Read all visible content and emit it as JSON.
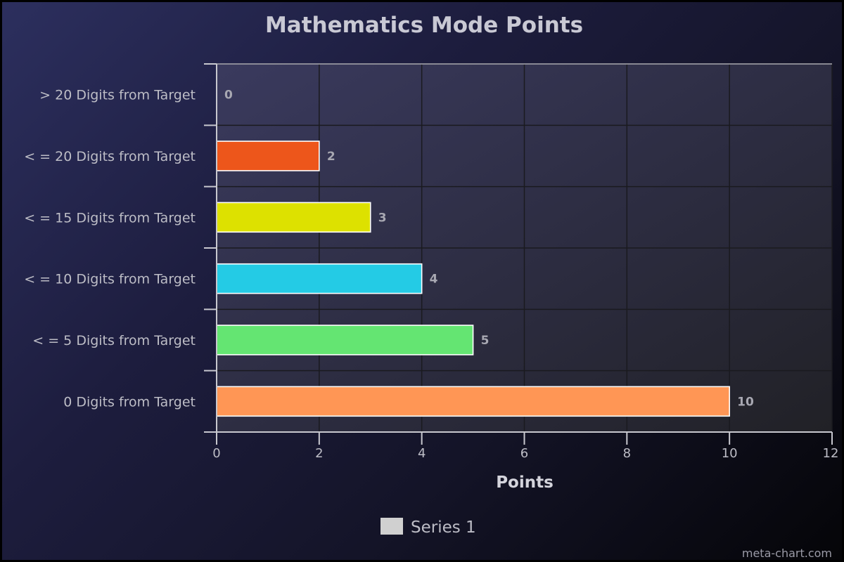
{
  "watermark": "meta-chart.com",
  "chart_data": {
    "type": "bar",
    "orientation": "horizontal",
    "title": "Mathematics Mode Points",
    "xlabel": "Points",
    "ylabel": "",
    "xlim": [
      0,
      12
    ],
    "x_ticks": [
      0,
      2,
      4,
      6,
      8,
      10,
      12
    ],
    "grid": true,
    "legend_placement": "bottom-center",
    "categories": [
      "> 20 Digits from Target",
      "< = 20 Digits from Target",
      "< = 15 Digits from Target",
      "< = 10 Digits from Target",
      "< = 5 Digits from Target",
      "0 Digits from Target"
    ],
    "series": [
      {
        "name": "Series 1",
        "values": [
          0,
          2,
          3,
          4,
          5,
          10
        ],
        "colors": [
          "#ff5050",
          "#ed561b",
          "#dde100",
          "#24cbe5",
          "#64e572",
          "#ff9655"
        ],
        "legend_color": "#d0d0d0"
      }
    ]
  }
}
